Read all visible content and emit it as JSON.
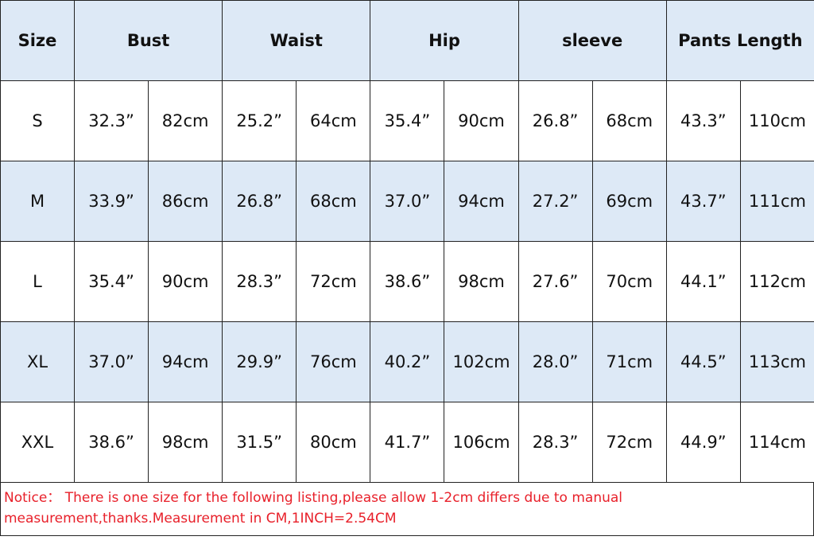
{
  "table": {
    "headers": [
      "Size",
      "Bust",
      "Waist",
      "Hip",
      "sleeve",
      "Pants Length"
    ],
    "rows": [
      {
        "size": "S",
        "values": [
          "32.3”",
          "82cm",
          "25.2”",
          "64cm",
          "35.4”",
          "90cm",
          "26.8”",
          "68cm",
          "43.3”",
          "110cm"
        ],
        "highlighted": false
      },
      {
        "size": "M",
        "values": [
          "33.9”",
          "86cm",
          "26.8”",
          "68cm",
          "37.0”",
          "94cm",
          "27.2”",
          "69cm",
          "43.7”",
          "111cm"
        ],
        "highlighted": true
      },
      {
        "size": "L",
        "values": [
          "35.4”",
          "90cm",
          "28.3”",
          "72cm",
          "38.6”",
          "98cm",
          "27.6”",
          "70cm",
          "44.1”",
          "112cm"
        ],
        "highlighted": false
      },
      {
        "size": "XL",
        "values": [
          "37.0”",
          "94cm",
          "29.9”",
          "76cm",
          "40.2”",
          "102cm",
          "28.0”",
          "71cm",
          "44.5”",
          "113cm"
        ],
        "highlighted": true
      },
      {
        "size": "XXL",
        "values": [
          "38.6”",
          "98cm",
          "31.5”",
          "80cm",
          "41.7”",
          "106cm",
          "28.3”",
          "72cm",
          "44.9”",
          "114cm"
        ],
        "highlighted": false
      }
    ],
    "header_bg": "#dde9f6"
  },
  "notice": {
    "line1": "Notice：  There is one size for the following listing,please allow 1-2cm differs due to manual",
    "line2": "measurement,thanks.Measurement in CM,1INCH=2.54CM",
    "color": "#e8202a"
  }
}
